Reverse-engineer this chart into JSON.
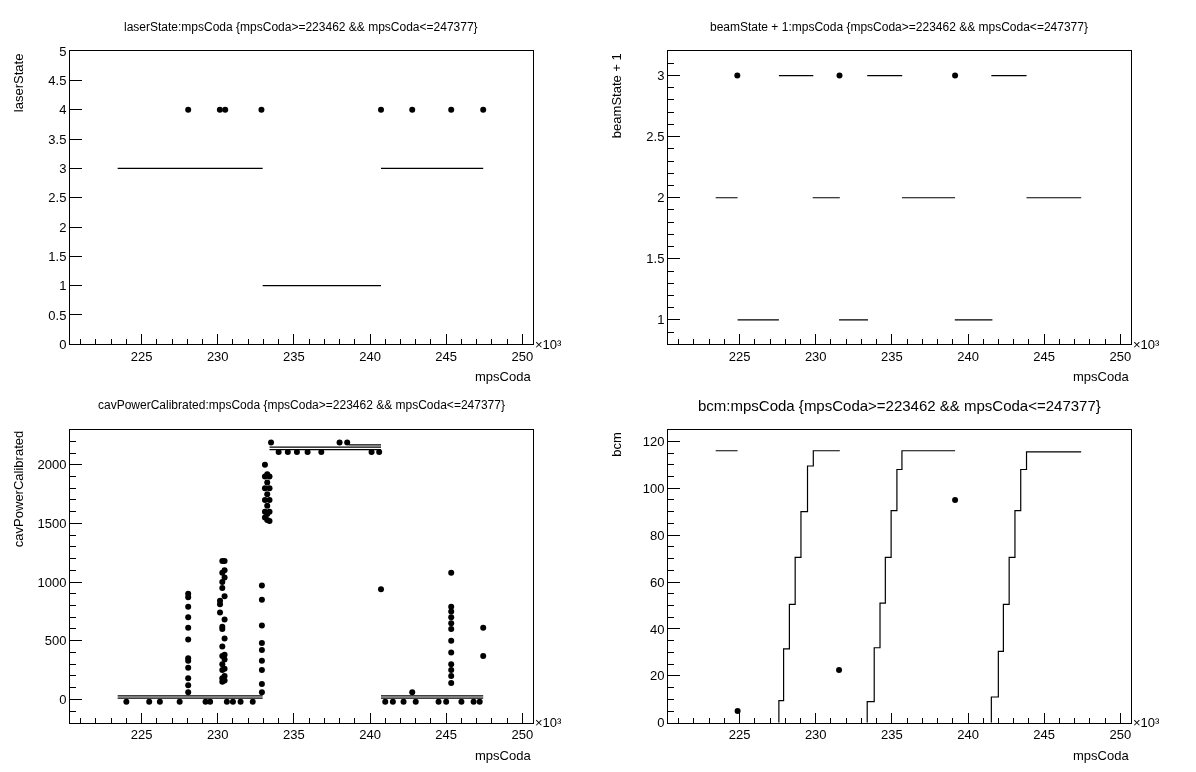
{
  "chart_data": [
    {
      "type": "scatter",
      "title": "laserState:mpsCoda {mpsCoda>=223462 && mpsCoda<=247377}",
      "xlabel": "mpsCoda",
      "ylabel": "laserState",
      "annotations": [
        "×10³"
      ],
      "xlim": [
        220.3,
        250.7
      ],
      "xticks": [
        {
          "value": 221,
          "label": null
        },
        {
          "value": 222,
          "label": null
        },
        {
          "value": 223,
          "label": null
        },
        {
          "value": 224,
          "label": null
        },
        225,
        {
          "value": 226,
          "label": null
        },
        {
          "value": 227,
          "label": null
        },
        {
          "value": 228,
          "label": null
        },
        {
          "value": 229,
          "label": null
        },
        230,
        {
          "value": 231,
          "label": null
        },
        {
          "value": 232,
          "label": null
        },
        {
          "value": 233,
          "label": null
        },
        {
          "value": 234,
          "label": null
        },
        235,
        {
          "value": 236,
          "label": null
        },
        {
          "value": 237,
          "label": null
        },
        {
          "value": 238,
          "label": null
        },
        {
          "value": 239,
          "label": null
        },
        240,
        {
          "value": 241,
          "label": null
        },
        {
          "value": 242,
          "label": null
        },
        {
          "value": 243,
          "label": null
        },
        {
          "value": 244,
          "label": null
        },
        245,
        {
          "value": 246,
          "label": null
        },
        {
          "value": 247,
          "label": null
        },
        {
          "value": 248,
          "label": null
        },
        {
          "value": 249,
          "label": null
        },
        250
      ],
      "ylim": [
        0,
        5
      ],
      "yticks": [
        0,
        0.5,
        1,
        1.5,
        2,
        2.5,
        3,
        3.5,
        4,
        4.5,
        5
      ],
      "series": [
        {
          "type": "line",
          "color": "#000000",
          "marker": "none",
          "x": [
            223.43,
            232.95,
            null,
            232.95,
            240.72,
            null,
            240.72,
            247.43
          ],
          "values": [
            3,
            3,
            null,
            1,
            1,
            null,
            3,
            3
          ]
        },
        {
          "color": "#000000",
          "marker": "circle",
          "x": [
            228.06,
            230.14,
            230.3,
            230.49,
            232.87,
            240.72,
            242.77,
            245.33,
            247.43
          ],
          "values": [
            4,
            4,
            null,
            4,
            4,
            4,
            4,
            4,
            4
          ]
        }
      ]
    },
    {
      "type": "scatter",
      "title": "beamState + 1:mpsCoda {mpsCoda>=223462 && mpsCoda<=247377}",
      "xlabel": "mpsCoda",
      "ylabel": "beamState + 1",
      "annotations": [
        "×10³"
      ],
      "xlim": [
        220.3,
        250.7
      ],
      "xticks": [
        {
          "value": 221,
          "label": null
        },
        {
          "value": 222,
          "label": null
        },
        {
          "value": 223,
          "label": null
        },
        {
          "value": 224,
          "label": null
        },
        225,
        {
          "value": 226,
          "label": null
        },
        {
          "value": 227,
          "label": null
        },
        {
          "value": 228,
          "label": null
        },
        {
          "value": 229,
          "label": null
        },
        230,
        {
          "value": 231,
          "label": null
        },
        {
          "value": 232,
          "label": null
        },
        {
          "value": 233,
          "label": null
        },
        {
          "value": 234,
          "label": null
        },
        235,
        {
          "value": 236,
          "label": null
        },
        {
          "value": 237,
          "label": null
        },
        {
          "value": 238,
          "label": null
        },
        {
          "value": 239,
          "label": null
        },
        240,
        {
          "value": 241,
          "label": null
        },
        {
          "value": 242,
          "label": null
        },
        {
          "value": 243,
          "label": null
        },
        {
          "value": 244,
          "label": null
        },
        245,
        {
          "value": 246,
          "label": null
        },
        {
          "value": 247,
          "label": null
        },
        {
          "value": 248,
          "label": null
        },
        {
          "value": 249,
          "label": null
        },
        250
      ],
      "ylim": [
        0.8,
        3.2
      ],
      "yticks": [
        {
          "value": 0.9,
          "label": null
        },
        1,
        {
          "value": 1.1,
          "label": null
        },
        {
          "value": 1.2,
          "label": null
        },
        {
          "value": 1.3,
          "label": null
        },
        {
          "value": 1.4,
          "label": null
        },
        1.5,
        {
          "value": 1.6,
          "label": null
        },
        {
          "value": 1.7,
          "label": null
        },
        {
          "value": 1.8,
          "label": null
        },
        {
          "value": 1.9,
          "label": null
        },
        2,
        {
          "value": 2.1,
          "label": null
        },
        {
          "value": 2.2,
          "label": null
        },
        {
          "value": 2.3,
          "label": null
        },
        {
          "value": 2.4,
          "label": null
        },
        2.5,
        {
          "value": 2.6,
          "label": null
        },
        {
          "value": 2.7,
          "label": null
        },
        {
          "value": 2.8,
          "label": null
        },
        {
          "value": 2.9,
          "label": null
        },
        3,
        {
          "value": 3.1,
          "label": null
        }
      ],
      "series": [
        {
          "type": "line",
          "color": "#000000",
          "marker": "none",
          "x": [
            223.43,
            224.87,
            null,
            224.87,
            227.58,
            null,
            227.58,
            229.84,
            null,
            229.8,
            231.58,
            null,
            231.53,
            233.43,
            null,
            233.38,
            235.68,
            null,
            235.66,
            239.15,
            null,
            239.13,
            241.6,
            null,
            241.53,
            243.84,
            null,
            243.84,
            247.43
          ],
          "values": [
            2,
            2,
            null,
            1,
            1,
            null,
            3,
            3,
            null,
            2,
            2,
            null,
            1,
            1,
            null,
            3,
            3,
            null,
            2,
            2,
            null,
            1,
            1,
            null,
            3,
            3,
            null,
            2,
            2
          ]
        },
        {
          "color": "#000000",
          "marker": "circle",
          "x": [
            224.85,
            231.56,
            239.15
          ],
          "values": [
            3,
            3,
            3
          ]
        }
      ]
    },
    {
      "type": "scatter",
      "title": "cavPowerCalibrated:mpsCoda {mpsCoda>=223462 && mpsCoda<=247377}",
      "xlabel": "mpsCoda",
      "ylabel": "cavPowerCalibrated",
      "annotations": [
        "×10³"
      ],
      "xlim": [
        220.3,
        250.7
      ],
      "xticks": [
        {
          "value": 221,
          "label": null
        },
        {
          "value": 222,
          "label": null
        },
        {
          "value": 223,
          "label": null
        },
        {
          "value": 224,
          "label": null
        },
        225,
        {
          "value": 226,
          "label": null
        },
        {
          "value": 227,
          "label": null
        },
        {
          "value": 228,
          "label": null
        },
        {
          "value": 229,
          "label": null
        },
        230,
        {
          "value": 231,
          "label": null
        },
        {
          "value": 232,
          "label": null
        },
        {
          "value": 233,
          "label": null
        },
        {
          "value": 234,
          "label": null
        },
        235,
        {
          "value": 236,
          "label": null
        },
        {
          "value": 237,
          "label": null
        },
        {
          "value": 238,
          "label": null
        },
        {
          "value": 239,
          "label": null
        },
        240,
        {
          "value": 241,
          "label": null
        },
        {
          "value": 242,
          "label": null
        },
        {
          "value": 243,
          "label": null
        },
        {
          "value": 244,
          "label": null
        },
        245,
        {
          "value": 246,
          "label": null
        },
        {
          "value": 247,
          "label": null
        },
        {
          "value": 248,
          "label": null
        },
        {
          "value": 249,
          "label": null
        },
        250
      ],
      "ylim": [
        -200,
        2300
      ],
      "yticks": [
        {
          "value": -100,
          "label": null
        },
        0,
        {
          "value": 100,
          "label": null
        },
        {
          "value": 200,
          "label": null
        },
        {
          "value": 300,
          "label": null
        },
        {
          "value": 400,
          "label": null
        },
        500,
        {
          "value": 600,
          "label": null
        },
        {
          "value": 700,
          "label": null
        },
        {
          "value": 800,
          "label": null
        },
        {
          "value": 900,
          "label": null
        },
        1000,
        {
          "value": 1100,
          "label": null
        },
        {
          "value": 1200,
          "label": null
        },
        {
          "value": 1300,
          "label": null
        },
        {
          "value": 1400,
          "label": null
        },
        1500,
        {
          "value": 1600,
          "label": null
        },
        {
          "value": 1700,
          "label": null
        },
        {
          "value": 1800,
          "label": null
        },
        {
          "value": 1900,
          "label": null
        },
        2000,
        {
          "value": 2100,
          "label": null
        },
        {
          "value": 2200,
          "label": null
        }
      ],
      "series": [
        {
          "type": "line",
          "color": "#000000",
          "marker": "none",
          "x": [
            223.43,
            232.95,
            null,
            240.72,
            247.43
          ],
          "values": [
            30,
            30,
            null,
            30,
            30
          ]
        },
        {
          "type": "line",
          "color": "#000000",
          "marker": "none",
          "x": [
            223.43,
            232.95,
            null,
            240.72,
            247.43
          ],
          "values": [
            10,
            10,
            null,
            10,
            10
          ]
        },
        {
          "type": "line",
          "color": "#000000",
          "marker": "none",
          "x": [
            233.4,
            240.72
          ],
          "values": [
            2150,
            2150
          ]
        },
        {
          "type": "line",
          "color": "#000000",
          "marker": "none",
          "x": [
            233.4,
            240.72
          ],
          "values": [
            2130,
            2130
          ]
        },
        {
          "type": "line",
          "color": "#000000",
          "marker": "none",
          "x": [
            238.6,
            240.72
          ],
          "values": [
            2170,
            2170
          ]
        },
        {
          "color": "#000000",
          "marker": "circle",
          "x": [
            228.06,
            228.06,
            228.06,
            228.06,
            228.06,
            228.06,
            228.06,
            228.06,
            228.06,
            228.06,
            228.06,
            228.06,
            230.15,
            230.15,
            230.15,
            230.3,
            230.3,
            230.3,
            230.3,
            230.3,
            230.3,
            230.3,
            230.3,
            230.3,
            230.3,
            230.3,
            230.3,
            230.45,
            230.45,
            230.45,
            230.45,
            230.45,
            230.45,
            230.45,
            230.45,
            230.45,
            230.45,
            230.45,
            232.9,
            232.9,
            232.9,
            232.9,
            232.9,
            232.9,
            232.9,
            232.9,
            232.9,
            233.1,
            233.1,
            233.1,
            233.1,
            233.1,
            233.1,
            233.25,
            233.25,
            233.25,
            233.25,
            233.25,
            233.25,
            233.4,
            233.4,
            233.4,
            233.4,
            233.4,
            240.72,
            242.77,
            245.33,
            245.33,
            245.33,
            245.33,
            245.33,
            245.33,
            245.33,
            245.33,
            245.33,
            245.33,
            245.33,
            245.33,
            247.43,
            247.43,
            224,
            225.5,
            226.2,
            227.5,
            229.2,
            229.5,
            230.6,
            231,
            231.5,
            232.3,
            241,
            241.5,
            242.2,
            243,
            244.5,
            245,
            246,
            246.8,
            247.2,
            234,
            234.6,
            235.2,
            235.9,
            236.8,
            240.1,
            240.6,
            233.5,
            238,
            238.5
          ],
          "values": [
            60,
            120,
            180,
            270,
            330,
            350,
            510,
            610,
            700,
            790,
            870,
            900,
            740,
            810,
            840,
            1080,
            1180,
            1000,
            950,
            620,
            600,
            450,
            370,
            300,
            250,
            180,
            150,
            1180,
            1100,
            1040,
            880,
            680,
            520,
            380,
            340,
            260,
            200,
            160,
            970,
            850,
            630,
            480,
            420,
            330,
            250,
            130,
            60,
            2000,
            1900,
            1800,
            1700,
            1600,
            1550,
            1920,
            1850,
            1750,
            1650,
            1580,
            1530,
            1900,
            1800,
            1700,
            1600,
            1520,
            940,
            60,
            1080,
            790,
            750,
            700,
            650,
            600,
            500,
            400,
            300,
            250,
            200,
            140,
            610,
            370,
            -20,
            -20,
            -20,
            -20,
            -20,
            -20,
            -20,
            -20,
            -20,
            -20,
            -20,
            -20,
            -20,
            -20,
            -20,
            -20,
            -20,
            -20,
            -20,
            2110,
            2110,
            2110,
            2110,
            2110,
            2110,
            2110,
            2190,
            2190,
            2190
          ]
        }
      ]
    },
    {
      "type": "scatter",
      "title": "bcm:mpsCoda {mpsCoda>=223462 && mpsCoda<=247377}",
      "xlabel": "mpsCoda",
      "ylabel": "bcm",
      "annotations": [
        "×10³"
      ],
      "xlim": [
        220.3,
        250.7
      ],
      "xticks": [
        {
          "value": 221,
          "label": null
        },
        {
          "value": 222,
          "label": null
        },
        {
          "value": 223,
          "label": null
        },
        {
          "value": 224,
          "label": null
        },
        225,
        {
          "value": 226,
          "label": null
        },
        {
          "value": 227,
          "label": null
        },
        {
          "value": 228,
          "label": null
        },
        {
          "value": 229,
          "label": null
        },
        230,
        {
          "value": 231,
          "label": null
        },
        {
          "value": 232,
          "label": null
        },
        {
          "value": 233,
          "label": null
        },
        {
          "value": 234,
          "label": null
        },
        235,
        {
          "value": 236,
          "label": null
        },
        {
          "value": 237,
          "label": null
        },
        {
          "value": 238,
          "label": null
        },
        {
          "value": 239,
          "label": null
        },
        240,
        {
          "value": 241,
          "label": null
        },
        {
          "value": 242,
          "label": null
        },
        {
          "value": 243,
          "label": null
        },
        {
          "value": 244,
          "label": null
        },
        245,
        {
          "value": 246,
          "label": null
        },
        {
          "value": 247,
          "label": null
        },
        {
          "value": 248,
          "label": null
        },
        {
          "value": 249,
          "label": null
        },
        250
      ],
      "ylim": [
        0,
        125
      ],
      "yticks": [
        0,
        {
          "value": 5,
          "label": null
        },
        {
          "value": 10,
          "label": null
        },
        {
          "value": 15,
          "label": null
        },
        20,
        {
          "value": 25,
          "label": null
        },
        {
          "value": 30,
          "label": null
        },
        {
          "value": 35,
          "label": null
        },
        40,
        {
          "value": 45,
          "label": null
        },
        {
          "value": 50,
          "label": null
        },
        {
          "value": 55,
          "label": null
        },
        60,
        {
          "value": 65,
          "label": null
        },
        {
          "value": 70,
          "label": null
        },
        {
          "value": 75,
          "label": null
        },
        80,
        {
          "value": 85,
          "label": null
        },
        {
          "value": 90,
          "label": null
        },
        {
          "value": 95,
          "label": null
        },
        100,
        {
          "value": 105,
          "label": null
        },
        {
          "value": 110,
          "label": null
        },
        {
          "value": 115,
          "label": null
        },
        120
      ],
      "series": [
        {
          "type": "line",
          "color": "#000000",
          "marker": "none",
          "x": [
            223.43,
            224.87,
            null,
            227.58,
            227.58,
            227.89,
            227.89,
            228.27,
            228.27,
            228.65,
            228.65,
            229.03,
            229.03,
            229.46,
            229.46,
            229.84,
            229.84,
            231.58,
            null,
            233.38,
            233.38,
            233.84,
            233.84,
            234.22,
            234.22,
            234.57,
            234.57,
            234.95,
            234.95,
            235.33,
            235.33,
            235.66,
            235.66,
            239.15,
            null,
            241.53,
            241.53,
            241.99,
            241.99,
            242.32,
            242.32,
            242.7,
            242.7,
            243.08,
            243.08,
            243.46,
            243.46,
            243.84,
            243.84,
            247.43
          ],
          "values": [
            116,
            116,
            null,
            0,
            9.5,
            9.5,
            31.5,
            31.5,
            50.5,
            50.5,
            70.5,
            70.5,
            90,
            90,
            109.5,
            109.5,
            116,
            116,
            null,
            0,
            9,
            9,
            32,
            32,
            51,
            51,
            70.5,
            70.5,
            90.5,
            90.5,
            108,
            108,
            116,
            116,
            null,
            0,
            11,
            11,
            30.5,
            30.5,
            50.5,
            50.5,
            70.5,
            70.5,
            90.5,
            90.5,
            108,
            108,
            115.5,
            115.5
          ]
        },
        {
          "color": "#000000",
          "marker": "circle",
          "x": [
            224.87,
            231.53,
            239.15
          ],
          "values": [
            5,
            22.5,
            95
          ]
        }
      ]
    }
  ]
}
